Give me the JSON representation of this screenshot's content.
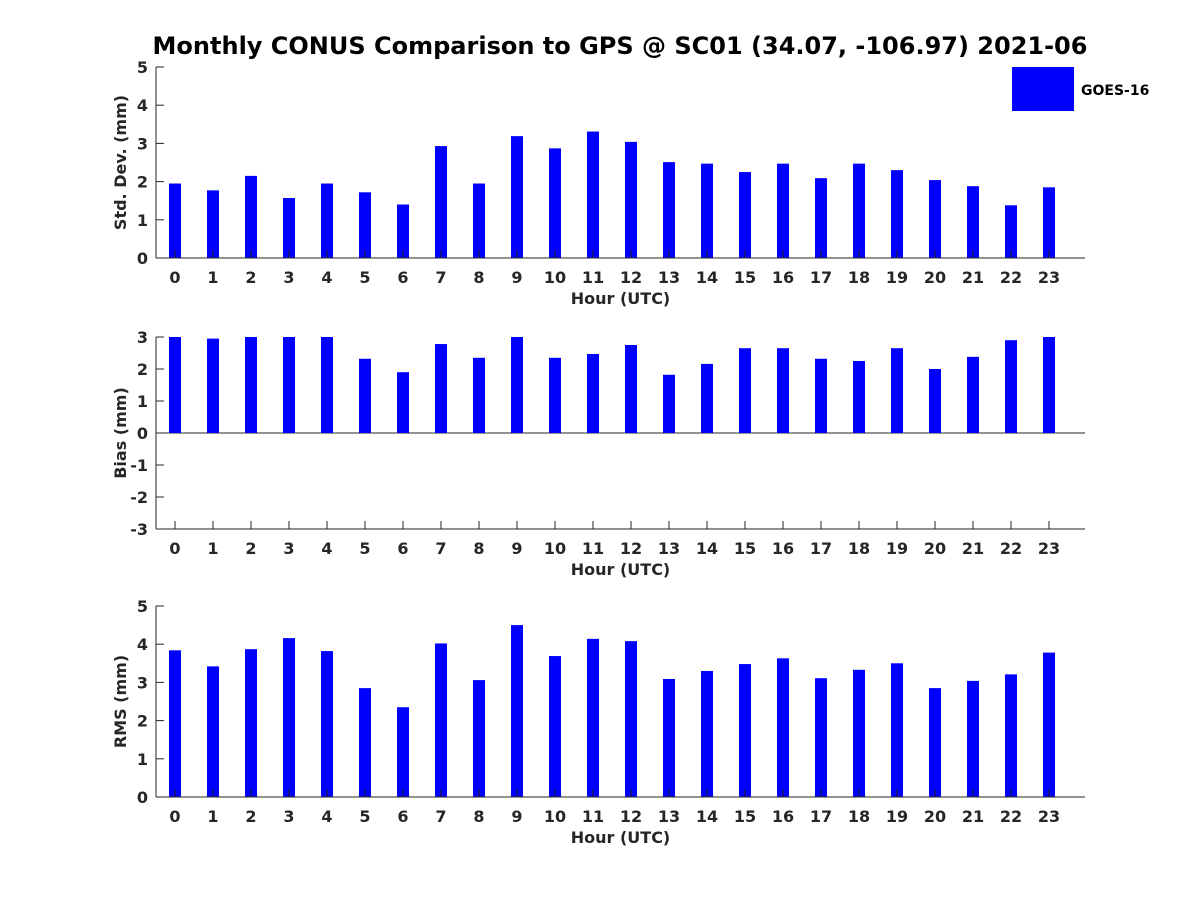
{
  "figure": {
    "title": "Monthly CONUS Comparison to GPS @ SC01 (34.07, -106.97) 2021-06",
    "legend": {
      "label": "GOES-16",
      "placement": "top-right",
      "color": "#0000ff"
    }
  },
  "chart_data": [
    {
      "type": "bar",
      "name": "stddev",
      "xlabel": "Hour (UTC)",
      "ylabel": "Std. Dev. (mm)",
      "ylim": [
        0,
        5
      ],
      "yticks": [
        0,
        1,
        2,
        3,
        4,
        5
      ],
      "categories": [
        "0",
        "1",
        "2",
        "3",
        "4",
        "5",
        "6",
        "7",
        "8",
        "9",
        "10",
        "11",
        "12",
        "13",
        "14",
        "15",
        "16",
        "17",
        "18",
        "19",
        "20",
        "21",
        "22",
        "23"
      ],
      "series": [
        {
          "name": "GOES-16",
          "color": "#0000ff",
          "values": [
            1.95,
            1.77,
            2.15,
            1.57,
            1.95,
            1.72,
            1.4,
            2.93,
            1.95,
            3.19,
            2.87,
            3.31,
            3.04,
            2.51,
            2.47,
            2.25,
            2.47,
            2.09,
            2.47,
            2.3,
            2.04,
            1.88,
            1.38,
            1.85
          ]
        }
      ]
    },
    {
      "type": "bar",
      "name": "bias",
      "xlabel": "Hour (UTC)",
      "ylabel": "Bias (mm)",
      "ylim": [
        -3,
        3
      ],
      "yticks": [
        -3,
        -2,
        -1,
        0,
        1,
        2,
        3
      ],
      "categories": [
        "0",
        "1",
        "2",
        "3",
        "4",
        "5",
        "6",
        "7",
        "8",
        "9",
        "10",
        "11",
        "12",
        "13",
        "14",
        "15",
        "16",
        "17",
        "18",
        "19",
        "20",
        "21",
        "22",
        "23"
      ],
      "series": [
        {
          "name": "GOES-16",
          "color": "#0000ff",
          "values": [
            3.0,
            2.95,
            3.0,
            3.0,
            3.0,
            2.32,
            1.9,
            2.78,
            2.35,
            3.0,
            2.35,
            2.47,
            2.75,
            1.82,
            2.16,
            2.65,
            2.65,
            2.32,
            2.25,
            2.65,
            2.0,
            2.38,
            2.9,
            3.0
          ]
        }
      ]
    },
    {
      "type": "bar",
      "name": "rms",
      "xlabel": "Hour (UTC)",
      "ylabel": "RMS (mm)",
      "ylim": [
        0,
        5
      ],
      "yticks": [
        0,
        1,
        2,
        3,
        4,
        5
      ],
      "categories": [
        "0",
        "1",
        "2",
        "3",
        "4",
        "5",
        "6",
        "7",
        "8",
        "9",
        "10",
        "11",
        "12",
        "13",
        "14",
        "15",
        "16",
        "17",
        "18",
        "19",
        "20",
        "21",
        "22",
        "23"
      ],
      "series": [
        {
          "name": "GOES-16",
          "color": "#0000ff",
          "values": [
            3.84,
            3.42,
            3.87,
            4.16,
            3.82,
            2.85,
            2.35,
            4.02,
            3.06,
            4.5,
            3.69,
            4.14,
            4.08,
            3.09,
            3.3,
            3.48,
            3.63,
            3.11,
            3.33,
            3.5,
            2.85,
            3.04,
            3.21,
            3.78
          ]
        }
      ]
    }
  ]
}
